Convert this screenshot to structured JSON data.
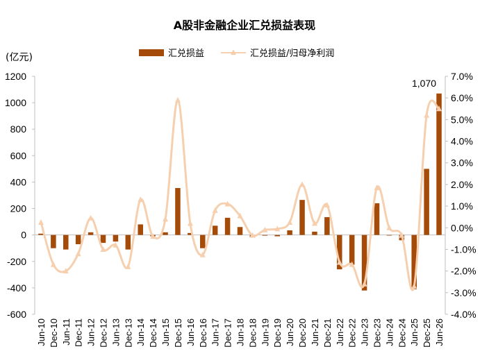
{
  "chart_data": {
    "type": "bar+line",
    "title": "A股非金融企业汇兑损益表现",
    "y_left_unit": "(亿元)",
    "y_left_ticks": [
      "1200",
      "1000",
      "800",
      "600",
      "400",
      "200",
      "0",
      "-200",
      "-400",
      "-600"
    ],
    "y_left_range": [
      -600,
      1200
    ],
    "y_right_ticks": [
      "7.0%",
      "6.0%",
      "5.0%",
      "4.0%",
      "3.0%",
      "2.0%",
      "1.0%",
      "0.0%",
      "-1.0%",
      "-2.0%",
      "-3.0%",
      "-4.0%"
    ],
    "y_right_range": [
      -4.0,
      7.0
    ],
    "categories": [
      "Jun-10",
      "Dec-10",
      "Jun-11",
      "Dec-11",
      "Jun-12",
      "Dec-12",
      "Jun-13",
      "Dec-13",
      "Jun-14",
      "Dec-14",
      "Jun-15",
      "Dec-15",
      "Jun-16",
      "Dec-16",
      "Jun-17",
      "Dec-17",
      "Jun-18",
      "Dec-18",
      "Jun-19",
      "Dec-19",
      "Jun-20",
      "Dec-20",
      "Jun-21",
      "Dec-21",
      "Jun-22",
      "Dec-22",
      "Jun-23",
      "Dec-23",
      "Jun-24",
      "Dec-24",
      "Jun-25",
      "Dec-25",
      "Jun-26"
    ],
    "series": [
      {
        "name": "汇兑损益",
        "type": "bar",
        "axis": "left",
        "color": "#a54b0a",
        "values": [
          10,
          -100,
          -110,
          -70,
          20,
          -60,
          -50,
          -110,
          80,
          -10,
          20,
          355,
          15,
          -100,
          70,
          130,
          60,
          -20,
          -5,
          -10,
          35,
          265,
          25,
          135,
          -260,
          -225,
          -420,
          240,
          0,
          -40,
          -410,
          500,
          1070
        ]
      },
      {
        "name": "汇兑损益/归母净利润",
        "type": "line",
        "axis": "right",
        "color": "#f6cfae",
        "values": [
          0.25,
          -1.7,
          -2.0,
          -1.2,
          0.45,
          -1.0,
          -0.8,
          -1.8,
          1.3,
          -0.4,
          0.4,
          5.9,
          0.2,
          -1.25,
          0.8,
          1.1,
          0.55,
          -0.35,
          -0.1,
          -0.05,
          0.25,
          2.0,
          0.2,
          1.05,
          -1.6,
          -1.7,
          -2.6,
          1.85,
          0.0,
          -0.35,
          -2.7,
          5.2,
          5.5
        ]
      }
    ],
    "annotations": [
      {
        "category": "Jun-26",
        "text": "1,070"
      }
    ],
    "legend": "top-center"
  }
}
